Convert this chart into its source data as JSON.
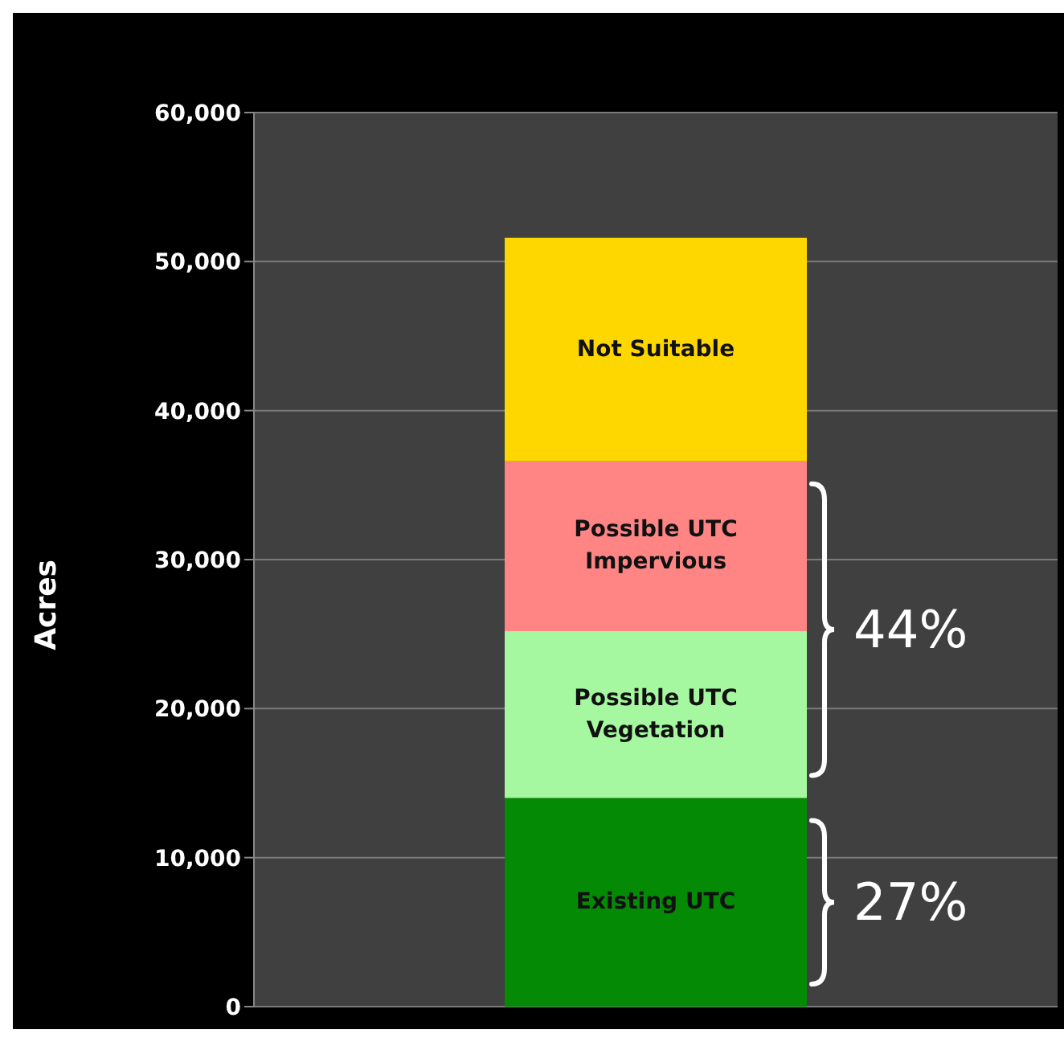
{
  "chart_data": {
    "type": "bar",
    "ylabel": "Acres",
    "categories": [
      null
    ],
    "stacked": true,
    "ylim": [
      0,
      60000
    ],
    "yticks": [
      {
        "value": 0,
        "label": "0"
      },
      {
        "value": 10000,
        "label": "10,000"
      },
      {
        "value": 20000,
        "label": "20,000"
      },
      {
        "value": 30000,
        "label": "30,000"
      },
      {
        "value": 40000,
        "label": "40,000"
      },
      {
        "value": 50000,
        "label": "50,000"
      },
      {
        "value": 60000,
        "label": "60,000"
      }
    ],
    "grid": "y",
    "legend": false,
    "series": [
      {
        "name": "Existing UTC",
        "color": "#058a05",
        "values": [
          14000
        ]
      },
      {
        "name": "Possible UTC Vegetation",
        "color": "#a5f8a0",
        "values": [
          11200
        ]
      },
      {
        "name": "Possible UTC Impervious",
        "color": "#ff8585",
        "values": [
          11400
        ]
      },
      {
        "name": "Not Suitable",
        "color": "#ffd700",
        "values": [
          15000
        ]
      }
    ],
    "annotations": [
      "44%",
      "27%"
    ]
  }
}
